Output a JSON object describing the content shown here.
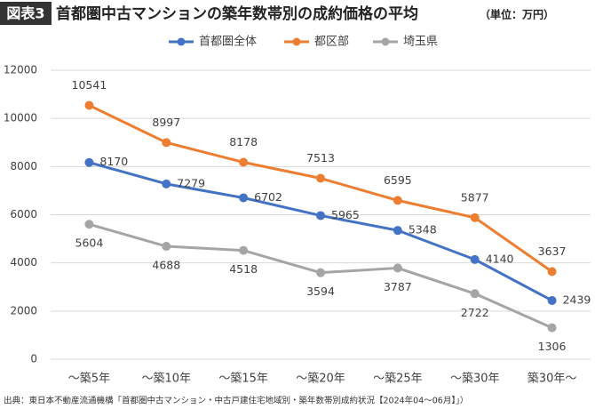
{
  "chart_data": {
    "type": "line",
    "badge": "図表3",
    "title": "首都圏中古マンションの築年数帯別の成約価格の平均",
    "subtitle": "（単位：万円）",
    "categories": [
      "～築5年",
      "～築10年",
      "～築15年",
      "～築20年",
      "～築25年",
      "～築30年",
      "築30年～"
    ],
    "series": [
      {
        "name": "首都圏全体",
        "color": "#4472c4",
        "label_side": "right",
        "values": [
          8170,
          7279,
          6702,
          5965,
          5348,
          4140,
          2439
        ]
      },
      {
        "name": "都区部",
        "color": "#ed7d31",
        "label_side": "above",
        "values": [
          10541,
          8997,
          8178,
          7513,
          6595,
          5877,
          3637
        ]
      },
      {
        "name": "埼玉県",
        "color": "#a5a5a5",
        "label_side": "below",
        "values": [
          5604,
          4688,
          4518,
          3594,
          3787,
          2722,
          1306
        ]
      }
    ],
    "ylim": [
      0,
      12000
    ],
    "yticks": [
      0,
      2000,
      4000,
      6000,
      8000,
      10000,
      12000
    ],
    "grid": true,
    "legend": "top",
    "source": "出典：東日本不動産流通機構「首都圏中古マンション・中古戸建住宅地域別・築年数帯別成約状況【2024年04～06月】」）"
  }
}
